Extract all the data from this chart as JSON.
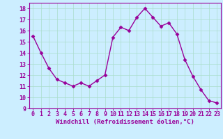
{
  "x": [
    0,
    1,
    2,
    3,
    4,
    5,
    6,
    7,
    8,
    9,
    10,
    11,
    12,
    13,
    14,
    15,
    16,
    17,
    18,
    19,
    20,
    21,
    22,
    23
  ],
  "y": [
    15.5,
    14.0,
    12.6,
    11.6,
    11.3,
    11.0,
    11.3,
    11.0,
    11.5,
    12.0,
    15.4,
    16.3,
    16.0,
    17.2,
    18.0,
    17.2,
    16.4,
    16.7,
    15.7,
    13.4,
    11.9,
    10.7,
    9.7,
    9.5
  ],
  "line_color": "#990099",
  "marker": "D",
  "markersize": 2.5,
  "linewidth": 1.0,
  "bg_color": "#cceeff",
  "grid_color": "#aaddcc",
  "xlabel": "Windchill (Refroidissement éolien,°C)",
  "xlabel_color": "#990099",
  "xlabel_fontsize": 6.5,
  "ylabel_ticks": [
    9,
    10,
    11,
    12,
    13,
    14,
    15,
    16,
    17,
    18
  ],
  "xlim": [
    -0.5,
    23.5
  ],
  "ylim": [
    9,
    18.5
  ],
  "tick_label_color": "#990099",
  "tick_label_fontsize": 6,
  "axis_color": "#990099"
}
